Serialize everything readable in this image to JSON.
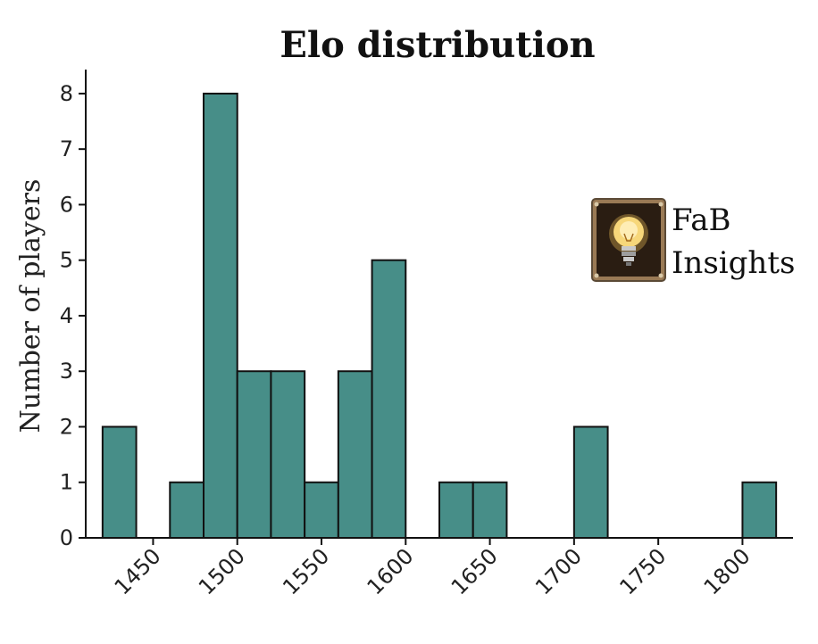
{
  "chart_data": {
    "type": "bar",
    "title": "Elo distribution",
    "xlabel": "",
    "ylabel": "Number of players",
    "bin_width": 20,
    "bins": [
      {
        "x": 1440,
        "count": 2
      },
      {
        "x": 1480,
        "count": 1
      },
      {
        "x": 1500,
        "count": 8
      },
      {
        "x": 1520,
        "count": 3
      },
      {
        "x": 1540,
        "count": 3
      },
      {
        "x": 1560,
        "count": 1
      },
      {
        "x": 1580,
        "count": 3
      },
      {
        "x": 1600,
        "count": 5
      },
      {
        "x": 1640,
        "count": 1
      },
      {
        "x": 1660,
        "count": 1
      },
      {
        "x": 1720,
        "count": 2
      },
      {
        "x": 1820,
        "count": 1
      }
    ],
    "xlim": [
      1410,
      1830
    ],
    "ylim": [
      0,
      8.4
    ],
    "xticks": [
      1450,
      1500,
      1550,
      1600,
      1650,
      1700,
      1750,
      1800
    ],
    "yticks": [
      0,
      1,
      2,
      3,
      4,
      5,
      6,
      7,
      8
    ],
    "grid": false,
    "bar_color": "#478e88"
  },
  "logo": {
    "line1": "FaB",
    "line2": "Insights",
    "icon": "light-bulb-icon"
  }
}
